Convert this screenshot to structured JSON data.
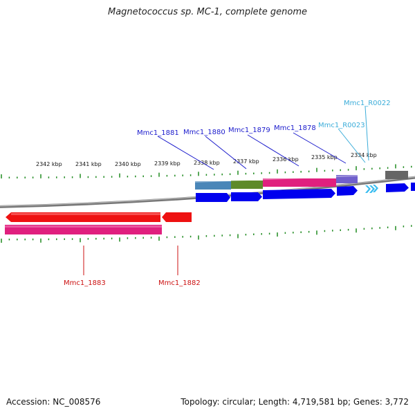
{
  "header": {
    "title": "Magnetococcus sp. MC-1, complete genome"
  },
  "footer": {
    "accession": "Accession: NC_008576",
    "summary": "Topology: circular; Length: 4,719,581 bp; Genes: 3,772"
  },
  "colors": {
    "backbone": "#777777",
    "tick": "#1f8a1f",
    "plus_gene_label": "#1a1acc",
    "rna_label": "#3aacd9",
    "minus_gene_label": "#cc1111",
    "cds_blue": "#0000ee",
    "rna_cyan": "#39bdf0",
    "minus_cds_red": "#ee1111",
    "minus_feature_pink": "#e0207e"
  },
  "kbp_labels": [
    "2342 kbp",
    "2341 kbp",
    "2340 kbp",
    "2339 kbp",
    "2338 kbp",
    "2337 kbp",
    "2336 kbp",
    "2335 kbp",
    "2334 kbp"
  ],
  "plus_strand_genes": [
    {
      "id": "Mmc1_1881",
      "feature_color": "#4a86b8",
      "type": "gene"
    },
    {
      "id": "Mmc1_1880",
      "feature_color": "#5e8a2a",
      "type": "gene"
    },
    {
      "id": "Mmc1_1879",
      "feature_color": "#e0207e",
      "type": "gene"
    },
    {
      "id": "Mmc1_1878",
      "feature_color": "#7060cc",
      "type": "gene"
    },
    {
      "id": "Mmc1_R0023",
      "feature_color": "#39bdf0",
      "type": "rna"
    },
    {
      "id": "Mmc1_R0022",
      "feature_color": "#39bdf0",
      "type": "rna"
    }
  ],
  "minus_strand_genes": [
    {
      "id": "Mmc1_1883"
    },
    {
      "id": "Mmc1_1882"
    }
  ],
  "unlabeled_feature_color": "#666666"
}
